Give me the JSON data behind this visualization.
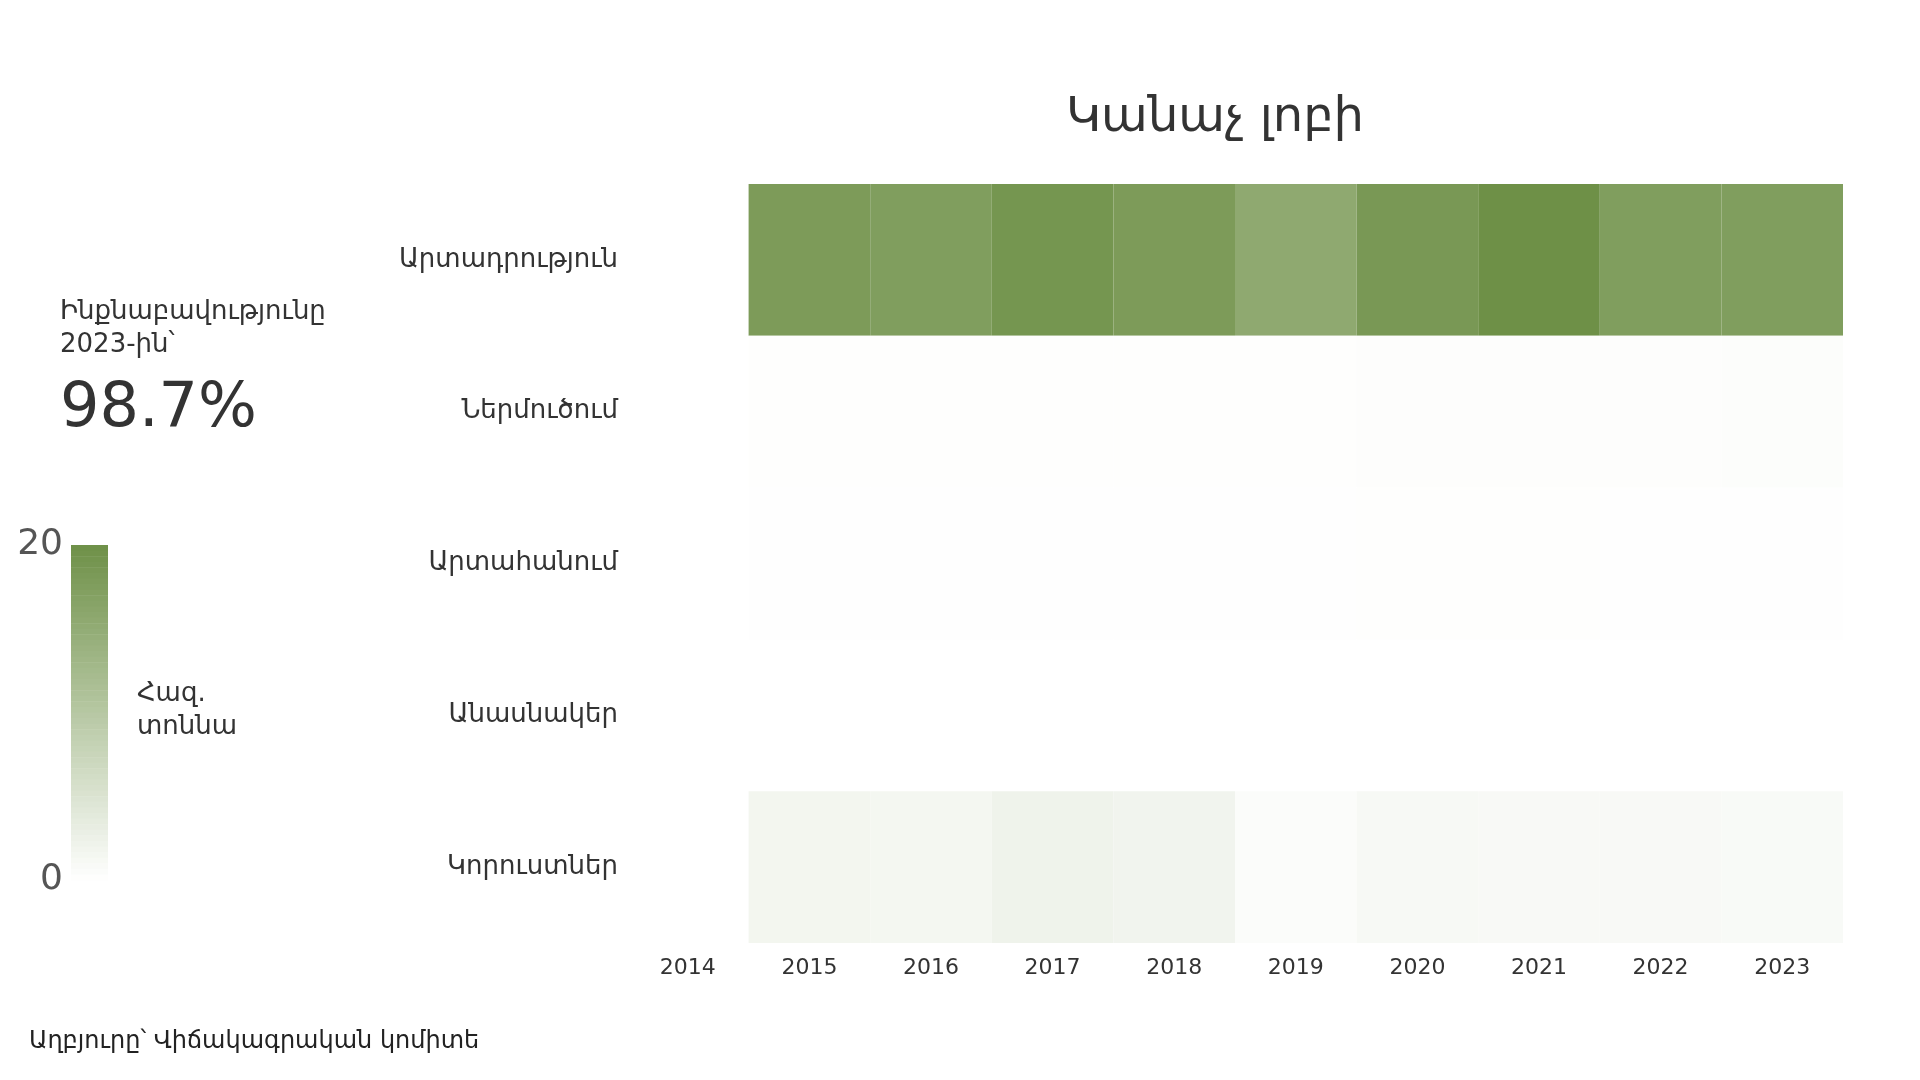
{
  "chart_data": {
    "type": "heatmap",
    "title": "Կանաչ լոբի",
    "categories": [
      "2014",
      "2015",
      "2016",
      "2017",
      "2018",
      "2019",
      "2020",
      "2021",
      "2022",
      "2023"
    ],
    "y_categories": [
      "Արտադրություն",
      "Ներմուծում",
      "Արտահանում",
      "Անասնակեր",
      "Կորուստներ"
    ],
    "cells": [
      [
        null,
        18,
        17.5,
        19,
        18,
        15.5,
        18.5,
        20,
        17.5,
        17.5
      ],
      [
        null,
        0.2,
        0.2,
        0.2,
        0.2,
        0.2,
        0.3,
        0.3,
        0.3,
        0.4
      ],
      [
        null,
        0.1,
        0.1,
        0.1,
        0.1,
        0.1,
        0.2,
        0.2,
        0.1,
        0.1
      ],
      [
        null,
        null,
        null,
        null,
        null,
        null,
        null,
        null,
        null,
        null
      ],
      [
        null,
        1.7,
        1.5,
        2.2,
        1.9,
        0.5,
        1.1,
        1,
        1,
        0.9
      ]
    ],
    "color": "#6e9047",
    "clim": [
      0,
      20
    ],
    "cticks": [
      0,
      20
    ],
    "clabel": "Հազ. տոննա",
    "annotations": [
      "Ինքնաբավությունը 2023-ին՝",
      "98.7%",
      "Աղբյուրը՝ Վիճակագրական կոմիտե"
    ]
  }
}
